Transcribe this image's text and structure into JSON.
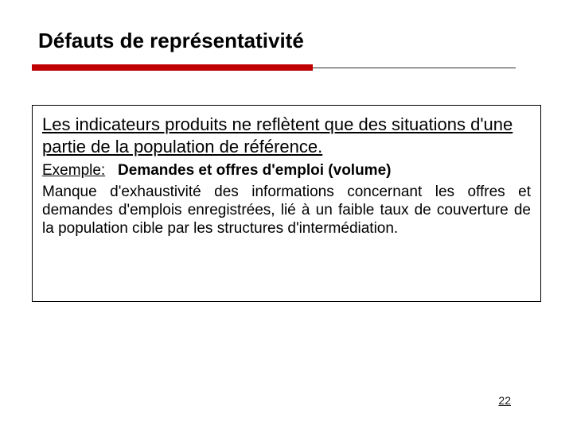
{
  "slide": {
    "title": "Défauts de représentativité",
    "accent_color": "#c00000",
    "underline_color": "#2a2a2a",
    "box_border_color": "#000000",
    "title_fontsize": 26,
    "body_fontsize": 19,
    "lead_fontsize": 22,
    "lead": "Les indicateurs produits ne reflètent que des situations d'une partie de la population de référence.",
    "example": {
      "label": "Exemple:",
      "title": "Demandes et offres d'emploi (volume)"
    },
    "body": "Manque d'exhaustivité des informations concernant les offres et demandes d'emplois enregistrées, lié à un faible taux de couverture de la population cible par les structures d'intermédiation.",
    "page_number": "22"
  }
}
